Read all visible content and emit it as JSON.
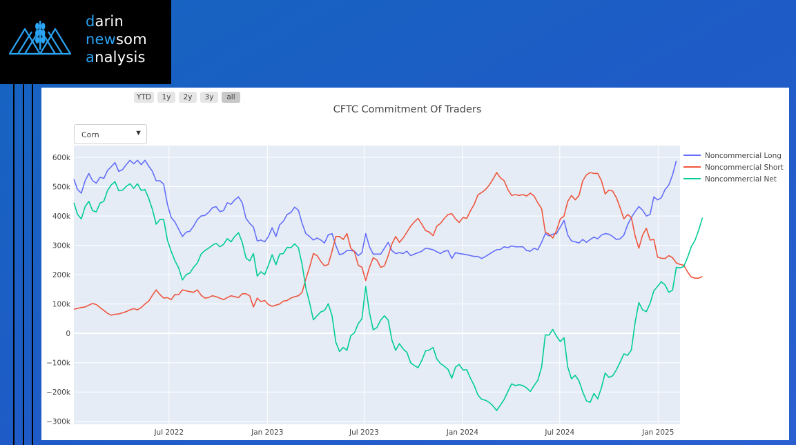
{
  "brand": {
    "line1_hl": "d",
    "line1": "arin",
    "line2_hl": "ne",
    "line2_mid": "w",
    "line2": "som",
    "line3_hl": "a",
    "line3": "nalysis"
  },
  "range_selector": [
    {
      "label": "YTD",
      "active": false
    },
    {
      "label": "1y",
      "active": false
    },
    {
      "label": "2y",
      "active": false
    },
    {
      "label": "3y",
      "active": false
    },
    {
      "label": "all",
      "active": true
    }
  ],
  "dropdown": {
    "selected": "Corn"
  },
  "colors": {
    "long": "#636efa",
    "short": "#ef553b",
    "net": "#00cc96",
    "plot_bg": "#e5ecf6"
  },
  "chart_data": {
    "type": "line",
    "title": "CFTC Commitment Of Traders",
    "xlabel": "",
    "ylabel": "",
    "xlim": [
      "2022-01-04",
      "2025-02-11"
    ],
    "ylim": [
      -310000,
      640000
    ],
    "x_ticks": [
      "Jul 2022",
      "Jan 2023",
      "Jul 2023",
      "Jan 2024",
      "Jul 2024",
      "Jan 2025"
    ],
    "x_tick_dates": [
      "2022-07-01",
      "2023-01-01",
      "2023-07-01",
      "2024-01-01",
      "2024-07-01",
      "2025-01-01"
    ],
    "y_ticks": [
      "600k",
      "500k",
      "400k",
      "300k",
      "200k",
      "100k",
      "0",
      "−100k",
      "−200k",
      "−300k"
    ],
    "y_tick_values": [
      600000,
      500000,
      400000,
      300000,
      200000,
      100000,
      0,
      -100000,
      -200000,
      -300000
    ],
    "legend": "top-right",
    "start_date": "2022-01-04",
    "interval_days": 7,
    "series": [
      {
        "name": "Noncommercial Long",
        "color": "#636efa",
        "values": [
          525000,
          490000,
          478000,
          520000,
          545000,
          520000,
          512000,
          532000,
          528000,
          555000,
          568000,
          582000,
          552000,
          558000,
          575000,
          590000,
          578000,
          590000,
          575000,
          590000,
          570000,
          552000,
          520000,
          520000,
          508000,
          440000,
          395000,
          380000,
          355000,
          330000,
          345000,
          348000,
          365000,
          388000,
          400000,
          402000,
          412000,
          428000,
          432000,
          415000,
          418000,
          445000,
          440000,
          455000,
          465000,
          445000,
          392000,
          375000,
          362000,
          315000,
          318000,
          312000,
          330000,
          360000,
          330000,
          370000,
          382000,
          405000,
          412000,
          430000,
          420000,
          375000,
          340000,
          330000,
          318000,
          325000,
          318000,
          308000,
          336000,
          340000,
          300000,
          268000,
          272000,
          282000,
          282000,
          280000,
          265000,
          275000,
          340000,
          295000,
          270000,
          270000,
          270000,
          290000,
          310000,
          282000,
          272000,
          275000,
          272000,
          280000,
          265000,
          270000,
          275000,
          280000,
          290000,
          288000,
          285000,
          278000,
          272000,
          280000,
          282000,
          255000,
          275000,
          272000,
          270000,
          268000,
          265000,
          262000,
          262000,
          255000,
          262000,
          270000,
          278000,
          285000,
          286000,
          295000,
          292000,
          298000,
          295000,
          295000,
          295000,
          282000,
          280000,
          290000,
          285000,
          310000,
          340000,
          332000,
          338000,
          340000,
          362000,
          385000,
          335000,
          315000,
          312000,
          308000,
          320000,
          310000,
          320000,
          328000,
          322000,
          335000,
          340000,
          338000,
          330000,
          320000,
          322000,
          335000,
          370000,
          395000,
          415000,
          432000,
          420000,
          400000,
          405000,
          465000,
          455000,
          462000,
          490000,
          505000,
          540000,
          588000
        ]
      },
      {
        "name": "Noncommercial Short",
        "color": "#ef553b",
        "values": [
          82000,
          85000,
          88000,
          90000,
          96000,
          102000,
          98000,
          88000,
          78000,
          68000,
          62000,
          65000,
          66000,
          70000,
          74000,
          80000,
          84000,
          80000,
          88000,
          100000,
          110000,
          130000,
          148000,
          132000,
          120000,
          122000,
          115000,
          132000,
          132000,
          148000,
          145000,
          142000,
          140000,
          148000,
          130000,
          120000,
          122000,
          128000,
          125000,
          120000,
          115000,
          122000,
          128000,
          125000,
          122000,
          135000,
          135000,
          128000,
          90000,
          120000,
          108000,
          112000,
          98000,
          92000,
          96000,
          100000,
          110000,
          112000,
          120000,
          125000,
          128000,
          140000,
          185000,
          225000,
          272000,
          265000,
          245000,
          230000,
          235000,
          280000,
          330000,
          330000,
          320000,
          340000,
          290000,
          278000,
          232000,
          225000,
          180000,
          225000,
          258000,
          250000,
          225000,
          230000,
          265000,
          305000,
          330000,
          310000,
          325000,
          345000,
          365000,
          380000,
          392000,
          372000,
          350000,
          345000,
          333000,
          365000,
          375000,
          392000,
          405000,
          408000,
          390000,
          378000,
          395000,
          392000,
          418000,
          440000,
          472000,
          480000,
          490000,
          505000,
          525000,
          548000,
          530000,
          520000,
          490000,
          470000,
          473000,
          470000,
          473000,
          468000,
          478000,
          468000,
          445000,
          425000,
          345000,
          338000,
          325000,
          350000,
          390000,
          400000,
          450000,
          470000,
          455000,
          470000,
          520000,
          540000,
          548000,
          545000,
          545000,
          520000,
          475000,
          488000,
          485000,
          462000,
          428000,
          390000,
          405000,
          395000,
          332000,
          290000,
          335000,
          358000,
          318000,
          320000,
          260000,
          256000,
          255000,
          265000,
          258000,
          240000,
          235000,
          232000,
          210000,
          192000,
          188000,
          188000,
          194000
        ]
      },
      {
        "name": "Noncommercial Net",
        "color": "#00cc96",
        "values": [
          445000,
          405000,
          390000,
          432000,
          450000,
          418000,
          414000,
          444000,
          450000,
          487000,
          506000,
          517000,
          486000,
          488000,
          501000,
          510000,
          494000,
          510000,
          487000,
          490000,
          460000,
          422000,
          372000,
          388000,
          388000,
          318000,
          280000,
          248000,
          223000,
          182000,
          200000,
          206000,
          225000,
          240000,
          270000,
          282000,
          290000,
          300000,
          307000,
          295000,
          303000,
          323000,
          312000,
          330000,
          343000,
          310000,
          257000,
          247000,
          272000,
          195000,
          210000,
          200000,
          232000,
          268000,
          234000,
          270000,
          272000,
          293000,
          292000,
          305000,
          292000,
          235000,
          155000,
          105000,
          46000,
          60000,
          73000,
          78000,
          101000,
          60000,
          -30000,
          -62000,
          -48000,
          -58000,
          -8000,
          2000,
          33000,
          50000,
          160000,
          70000,
          12000,
          20000,
          45000,
          60000,
          45000,
          -23000,
          -58000,
          -35000,
          -53000,
          -65000,
          -100000,
          -110000,
          -117000,
          -92000,
          -60000,
          -57000,
          -48000,
          -87000,
          -103000,
          -112000,
          -123000,
          -153000,
          -115000,
          -106000,
          -125000,
          -124000,
          -153000,
          -178000,
          -210000,
          -225000,
          -228000,
          -235000,
          -247000,
          -263000,
          -244000,
          -225000,
          -198000,
          -172000,
          -178000,
          -175000,
          -178000,
          -186000,
          -198000,
          -178000,
          -160000,
          -115000,
          -5000,
          -6000,
          13000,
          -10000,
          -28000,
          -15000,
          -115000,
          -155000,
          -143000,
          -162000,
          -200000,
          -230000,
          -235000,
          -205000,
          -223000,
          -185000,
          -135000,
          -150000,
          -145000,
          -124000,
          -98000,
          -70000,
          -75000,
          -57000,
          38000,
          105000,
          80000,
          74000,
          102000,
          145000,
          160000,
          176000,
          165000,
          140000,
          147000,
          225000,
          223000,
          228000,
          258000,
          295000,
          317000,
          352000,
          394000
        ]
      }
    ]
  }
}
